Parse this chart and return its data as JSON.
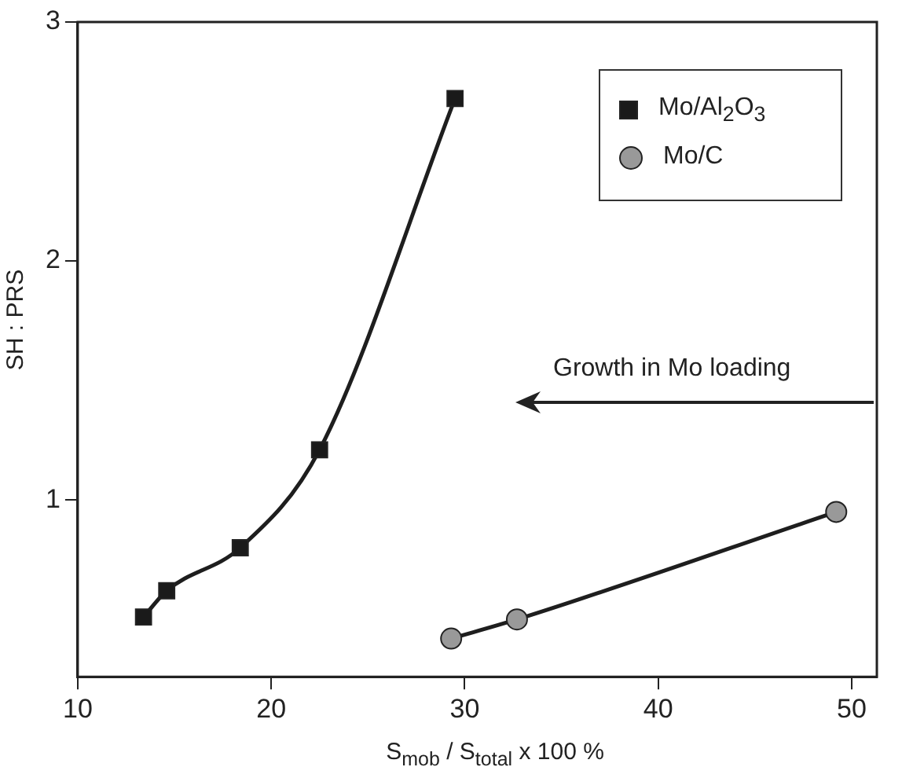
{
  "chart_data": {
    "type": "line",
    "xlabel": "S$_{mob}$ / S$_{total}$ x 100 %",
    "ylabel": "SH : PRS",
    "xlim": [
      10,
      51.3
    ],
    "xticks": [
      10,
      20,
      30,
      40,
      50
    ],
    "ylim": [
      0.26,
      3
    ],
    "yticks": [
      1,
      2,
      3
    ],
    "grid": false,
    "legend": "top right",
    "line_style": "solid",
    "annotations": [
      "Growth in Mo loading"
    ],
    "series": [
      {
        "name": "Mo/Al$_{2}$O$_{3}$",
        "color": "#1a1a1a",
        "marker": "square",
        "x": [
          13.4,
          14.6,
          18.4,
          22.5,
          29.5
        ],
        "values": [
          0.51,
          0.62,
          0.8,
          1.21,
          2.68
        ]
      },
      {
        "name": "Mo/C",
        "color": "#999999",
        "marker": "circle",
        "x": [
          29.3,
          32.7,
          49.2
        ],
        "values": [
          0.42,
          0.5,
          0.95
        ]
      }
    ]
  }
}
